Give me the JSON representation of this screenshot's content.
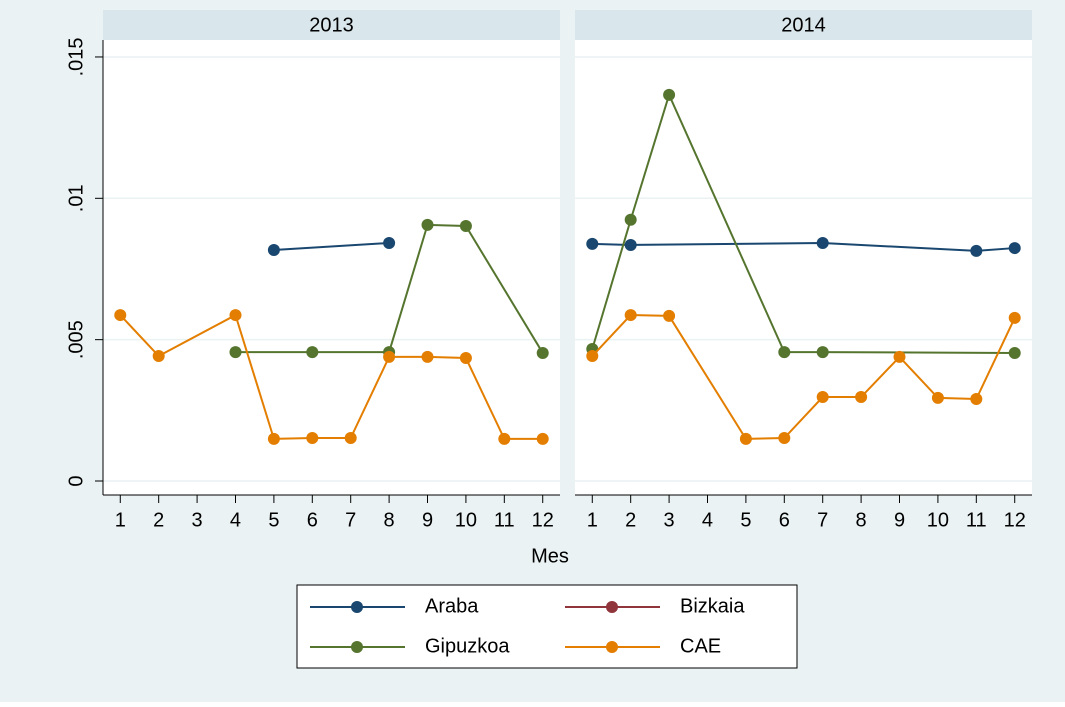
{
  "chart_data": [
    {
      "type": "line",
      "title": "2013",
      "x_label": "Mes",
      "xlim": [
        0.55,
        12.45
      ],
      "xticks": [
        1,
        2,
        3,
        4,
        5,
        6,
        7,
        8,
        9,
        10,
        11,
        12
      ],
      "ylim": [
        -0.000495,
        0.0156
      ],
      "yticks": [
        {
          "value": 0,
          "label": "0"
        },
        {
          "value": 0.005,
          "label": ".005"
        },
        {
          "value": 0.01,
          "label": ".01"
        },
        {
          "value": 0.015,
          "label": ".015"
        }
      ],
      "grid": true,
      "series": [
        {
          "name": "Araba",
          "color": "#1a476f",
          "x": [
            5,
            8
          ],
          "values": [
            0.00817,
            0.00842
          ]
        },
        {
          "name": "Bizkaia",
          "color": "#90353b",
          "x": [],
          "values": []
        },
        {
          "name": "Gipuzkoa",
          "color": "#55752f",
          "x": [
            4,
            6,
            8,
            9,
            10,
            12
          ],
          "values": [
            0.00456,
            0.00456,
            0.00456,
            0.00906,
            0.00902,
            0.00453
          ]
        },
        {
          "name": "CAE",
          "color": "#e37e00",
          "x": [
            1,
            2,
            4,
            5,
            6,
            7,
            8,
            9,
            10,
            11,
            12
          ],
          "values": [
            0.00587,
            0.00442,
            0.00587,
            0.00149,
            0.00152,
            0.00152,
            0.00439,
            0.00439,
            0.00435,
            0.00149,
            0.00149
          ]
        }
      ]
    },
    {
      "type": "line",
      "title": "2014",
      "xlim": [
        0.55,
        12.45
      ],
      "xticks": [
        1,
        2,
        3,
        4,
        5,
        6,
        7,
        8,
        9,
        10,
        11,
        12
      ],
      "ylim": [
        -0.000495,
        0.0156
      ],
      "yticks": [
        0,
        0.005,
        0.01,
        0.015
      ],
      "grid": true,
      "series": [
        {
          "name": "Araba",
          "color": "#1a476f",
          "x": [
            1,
            2,
            7,
            11,
            12
          ],
          "values": [
            0.00839,
            0.00835,
            0.00842,
            0.00814,
            0.00824
          ]
        },
        {
          "name": "Bizkaia",
          "color": "#90353b",
          "x": [],
          "values": []
        },
        {
          "name": "Gipuzkoa",
          "color": "#55752f",
          "x": [
            1,
            2,
            3,
            6,
            7,
            12
          ],
          "values": [
            0.00467,
            0.00924,
            0.01366,
            0.00456,
            0.00456,
            0.00453
          ]
        },
        {
          "name": "CAE",
          "color": "#e37e00",
          "x": [
            1,
            2,
            3,
            5,
            6,
            7,
            8,
            9,
            10,
            11,
            12
          ],
          "values": [
            0.00442,
            0.00587,
            0.00584,
            0.00149,
            0.00152,
            0.00297,
            0.00297,
            0.00439,
            0.00294,
            0.0029,
            0.00577
          ]
        }
      ]
    }
  ]
}
